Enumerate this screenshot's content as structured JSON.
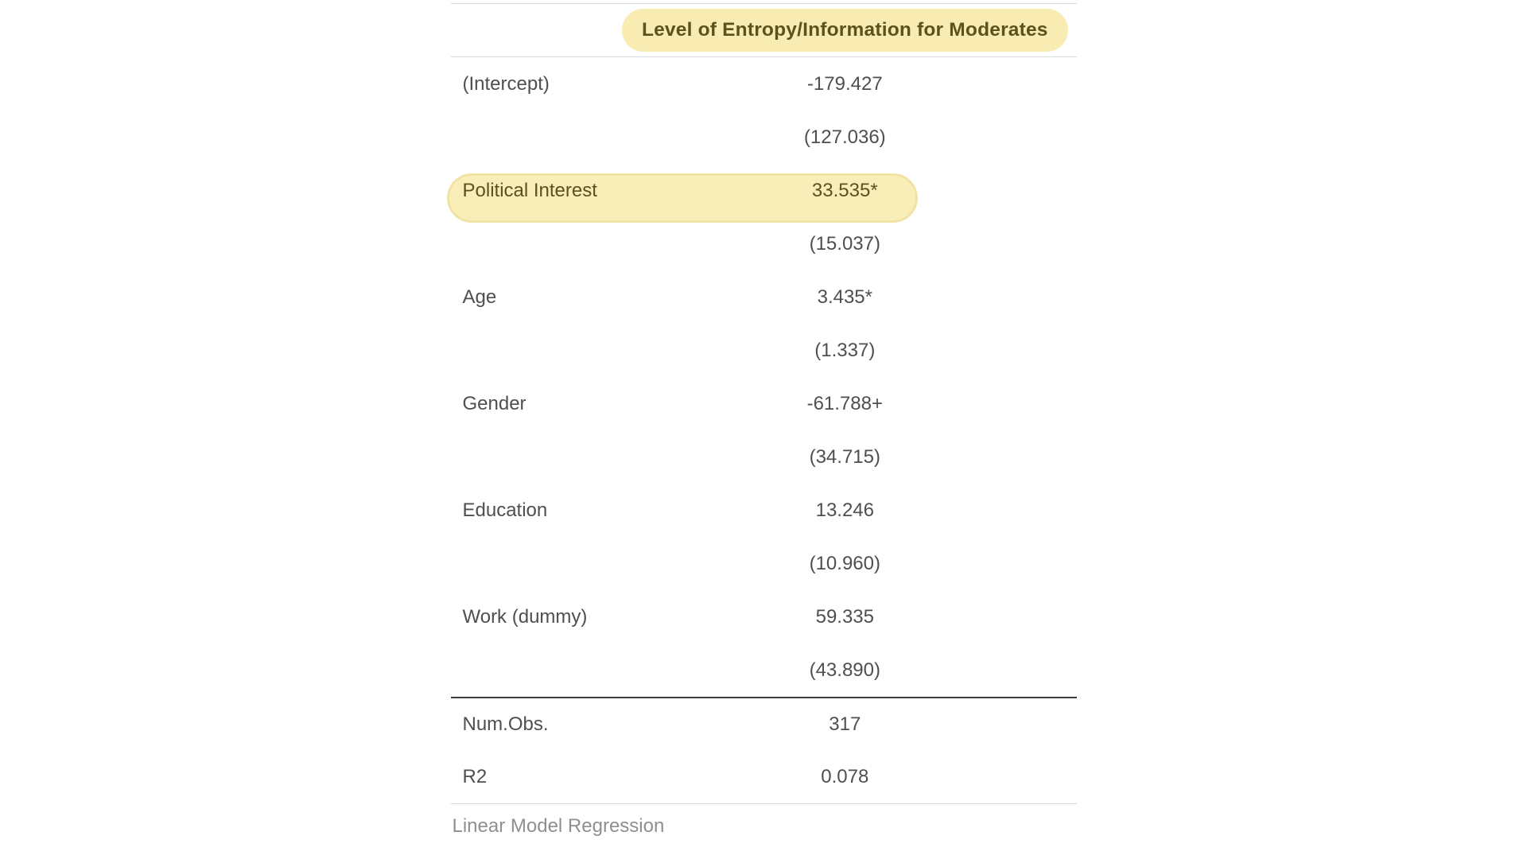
{
  "chart_data": {
    "type": "table",
    "title": "Level of Entropy/Information for Moderates",
    "columns": [
      "",
      "Level of Entropy/Information for Moderates"
    ],
    "coefficients": [
      {
        "term": "(Intercept)",
        "estimate": "-179.427",
        "se": "(127.036)",
        "highlighted": false
      },
      {
        "term": "Political Interest",
        "estimate": "33.535*",
        "se": "(15.037)",
        "highlighted": true
      },
      {
        "term": "Age",
        "estimate": "3.435*",
        "se": "(1.337)",
        "highlighted": false
      },
      {
        "term": "Gender",
        "estimate": "-61.788+",
        "se": "(34.715)",
        "highlighted": false
      },
      {
        "term": "Education",
        "estimate": "13.246",
        "se": "(10.960)",
        "highlighted": false
      },
      {
        "term": "Work (dummy)",
        "estimate": "59.335",
        "se": "(43.890)",
        "highlighted": false
      }
    ],
    "gof": [
      {
        "stat": "Num.Obs.",
        "value": "317"
      },
      {
        "stat": "R2",
        "value": "0.078"
      }
    ],
    "footnote": "Linear Model Regression"
  },
  "annotations": {
    "header_highlighted": true,
    "highlighted_row_term": "Political Interest"
  },
  "colors": {
    "background": "#ffffff",
    "body_text": "#4f4f4f",
    "highlight_fill": "#f8ecb2",
    "highlight_border": "#f1e3a4",
    "highlight_text": "#5b521d",
    "rule_light": "#dadada",
    "rule_dark": "#3d3d3d",
    "footnote_text": "#8f8f8f"
  }
}
